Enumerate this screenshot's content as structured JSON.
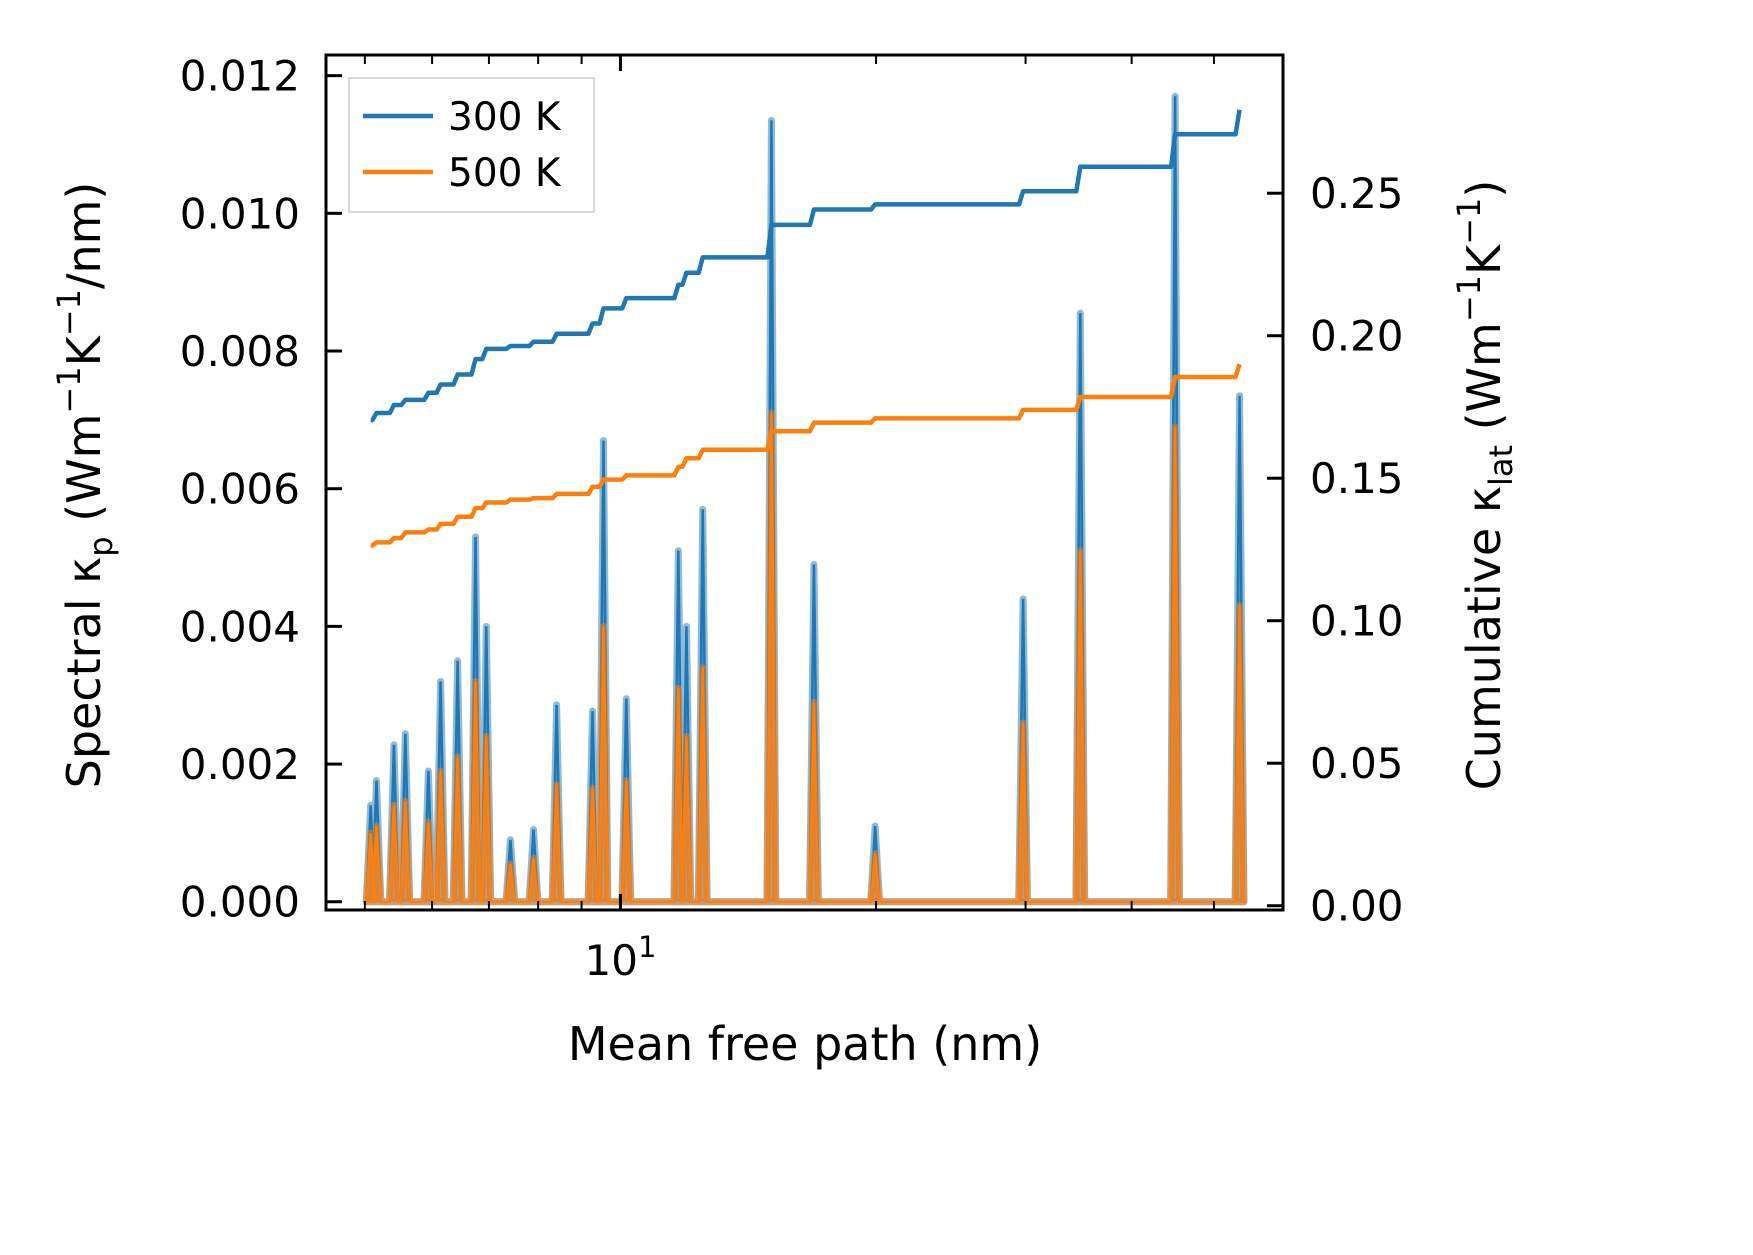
{
  "chart_data": {
    "type": "line",
    "xscale": "log",
    "xlabel": "Mean free path (nm)",
    "ylabel_left_parts": [
      [
        "Spectral κ",
        ""
      ],
      [
        "p",
        "sub"
      ],
      [
        " (Wm",
        ""
      ],
      [
        "−1",
        "sup"
      ],
      [
        "K",
        ""
      ],
      [
        "−1",
        "sup"
      ],
      [
        "/nm)",
        ""
      ]
    ],
    "ylabel_right_parts": [
      [
        "Cumulative κ",
        ""
      ],
      [
        "lat",
        "sub"
      ],
      [
        " (Wm",
        ""
      ],
      [
        "−1",
        "sup"
      ],
      [
        "K",
        ""
      ],
      [
        "−1",
        "sup"
      ],
      [
        ")",
        ""
      ]
    ],
    "xlim": [
      4.5,
      60.3
    ],
    "ylim_left": [
      -0.00012,
      0.0123
    ],
    "ylim_right": [
      -0.0015,
      0.2985
    ],
    "x_major_ticks": [
      {
        "value": 10,
        "base": "10",
        "exp": "1"
      }
    ],
    "x_minor_ticks": [
      5,
      6,
      7,
      8,
      9,
      20,
      30,
      40,
      50
    ],
    "y_left_ticks": [
      "0.000",
      "0.002",
      "0.004",
      "0.006",
      "0.008",
      "0.010",
      "0.012"
    ],
    "y_right_ticks": [
      "0.00",
      "0.05",
      "0.10",
      "0.15",
      "0.20",
      "0.25"
    ],
    "legend": {
      "placement": "top-left",
      "entries": [
        "300 K",
        "500 K"
      ]
    },
    "colors": {
      "300 K": "#1f77b4",
      "500 K": "#ff7f0e"
    },
    "mfp": [
      5.08,
      5.16,
      5.41,
      5.58,
      5.94,
      6.14,
      6.43,
      6.75,
      6.95,
      7.42,
      7.9,
      8.41,
      9.27,
      9.55,
      10.16,
      11.7,
      11.96,
      12.5,
      15.06,
      16.9,
      19.95,
      29.8,
      34.8,
      45.0,
      53.6
    ],
    "series": [
      {
        "name": "300 K",
        "spectral": [
          0.0014,
          0.00176,
          0.00228,
          0.00244,
          0.0019,
          0.0032,
          0.0035,
          0.0053,
          0.004,
          0.0009,
          0.00105,
          0.00286,
          0.00277,
          0.0067,
          0.00295,
          0.0051,
          0.004,
          0.0057,
          0.01135,
          0.0049,
          0.0011,
          0.0044,
          0.00855,
          0.0117,
          0.00735
        ],
        "cumulative": [
          0.1704,
          0.1729,
          0.1757,
          0.1775,
          0.18,
          0.1829,
          0.1864,
          0.1918,
          0.1954,
          0.1964,
          0.1979,
          0.2007,
          0.2043,
          0.2096,
          0.2132,
          0.2179,
          0.2221,
          0.2275,
          0.2389,
          0.2443,
          0.2461,
          0.2507,
          0.2593,
          0.2707,
          0.2793
        ]
      },
      {
        "name": "500 K",
        "spectral": [
          0.001,
          0.0011,
          0.0014,
          0.00146,
          0.00116,
          0.0019,
          0.0021,
          0.0032,
          0.0024,
          0.00055,
          0.00063,
          0.0017,
          0.00165,
          0.004,
          0.00176,
          0.0031,
          0.0024,
          0.0034,
          0.0071,
          0.0029,
          0.0007,
          0.0026,
          0.0051,
          0.0069,
          0.0043
        ],
        "cumulative": [
          0.1264,
          0.1275,
          0.129,
          0.131,
          0.132,
          0.134,
          0.1365,
          0.1395,
          0.1415,
          0.1425,
          0.143,
          0.1445,
          0.147,
          0.1495,
          0.151,
          0.154,
          0.157,
          0.16,
          0.1665,
          0.1695,
          0.171,
          0.174,
          0.1785,
          0.1855,
          0.19
        ]
      }
    ]
  }
}
